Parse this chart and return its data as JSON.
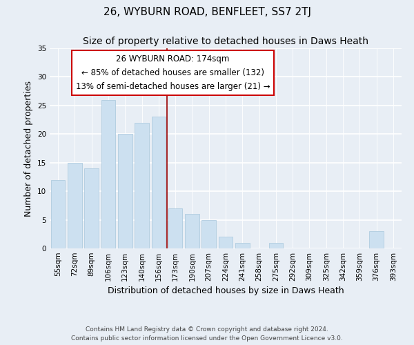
{
  "title": "26, WYBURN ROAD, BENFLEET, SS7 2TJ",
  "subtitle": "Size of property relative to detached houses in Daws Heath",
  "xlabel": "Distribution of detached houses by size in Daws Heath",
  "ylabel": "Number of detached properties",
  "bar_labels": [
    "55sqm",
    "72sqm",
    "89sqm",
    "106sqm",
    "123sqm",
    "140sqm",
    "156sqm",
    "173sqm",
    "190sqm",
    "207sqm",
    "224sqm",
    "241sqm",
    "258sqm",
    "275sqm",
    "292sqm",
    "309sqm",
    "325sqm",
    "342sqm",
    "359sqm",
    "376sqm",
    "393sqm"
  ],
  "bar_values": [
    12,
    15,
    14,
    26,
    20,
    22,
    23,
    7,
    6,
    5,
    2,
    1,
    0,
    1,
    0,
    0,
    0,
    0,
    0,
    3,
    0
  ],
  "bar_color": "#cce0f0",
  "bar_edge_color": "#b0cce0",
  "vline_color": "#990000",
  "ylim": [
    0,
    35
  ],
  "yticks": [
    0,
    5,
    10,
    15,
    20,
    25,
    30,
    35
  ],
  "footer_line1": "Contains HM Land Registry data © Crown copyright and database right 2024.",
  "footer_line2": "Contains public sector information licensed under the Open Government Licence v3.0.",
  "background_color": "#e8eef5",
  "plot_bg_color": "#e8eef5",
  "box_facecolor": "#ffffff",
  "box_edgecolor": "#cc0000",
  "title_fontsize": 11,
  "subtitle_fontsize": 10,
  "axis_label_fontsize": 9,
  "tick_fontsize": 7.5,
  "annotation_fontsize": 8.5,
  "property_label": "26 WYBURN ROAD: 174sqm",
  "annotation_line1": "← 85% of detached houses are smaller (132)",
  "annotation_line2": "13% of semi-detached houses are larger (21) →",
  "vline_x": 6.5
}
